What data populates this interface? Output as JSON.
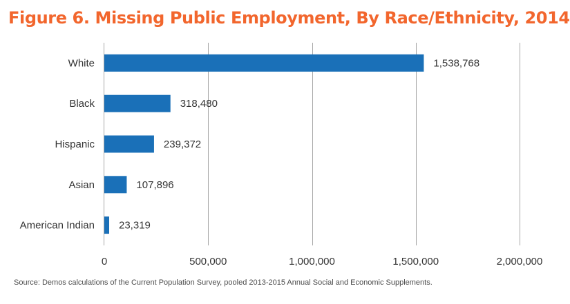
{
  "colors": {
    "title": "#f2662d",
    "bar": "#1a70b8",
    "grid": "#a6a6a6",
    "text": "#333333"
  },
  "chart_data": {
    "type": "bar",
    "orientation": "horizontal",
    "title": "Figure 6. Missing Public Employment, By Race/Ethnicity, 2014",
    "categories": [
      "White",
      "Black",
      "Hispanic",
      "Asian",
      "American Indian"
    ],
    "values": [
      1538768,
      318480,
      239372,
      107896,
      23319
    ],
    "value_labels": [
      "1,538,768",
      "318,480",
      "239,372",
      "107,896",
      "23,319"
    ],
    "xlim": [
      0,
      2000000
    ],
    "x_ticks": [
      0,
      500000,
      1000000,
      1500000,
      2000000
    ],
    "x_tick_labels": [
      "0",
      "500,000",
      "1,000,000",
      "1,500,000",
      "2,000,000"
    ],
    "grid": "vertical",
    "legend": "none",
    "source": "Source: Demos calculations of the Current Population Survey, pooled 2013-2015 Annual Social and Economic Supplements."
  }
}
